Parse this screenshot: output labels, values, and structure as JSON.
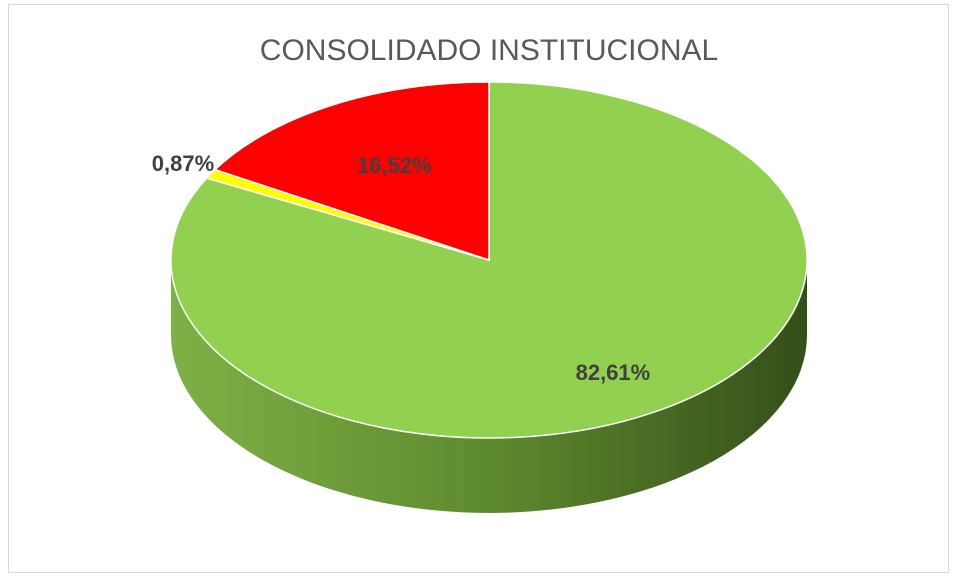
{
  "chart_data": {
    "type": "pie",
    "title": "CONSOLIDADO INSTITUCIONAL",
    "values": [
      82.61,
      0.87,
      16.52
    ],
    "value_labels": [
      "82,61%",
      "0,87%",
      "16,52%"
    ],
    "colors": [
      "#92d050",
      "#ffff00",
      "#ff0000"
    ]
  }
}
